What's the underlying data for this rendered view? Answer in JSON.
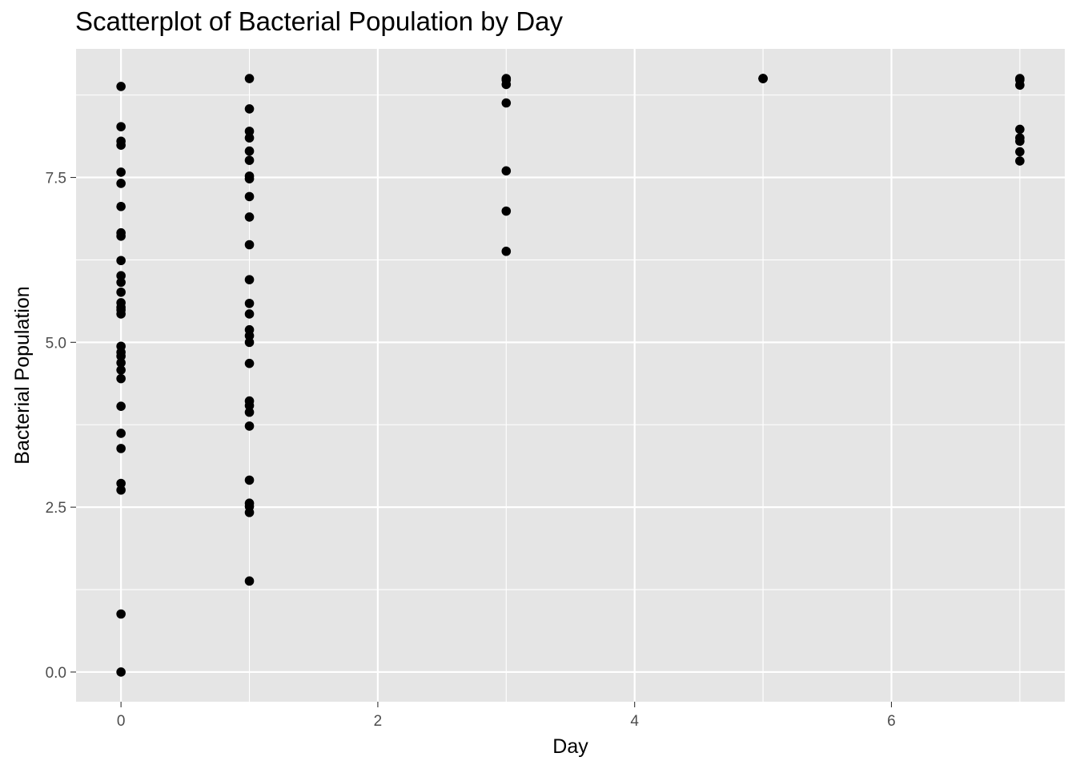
{
  "chart_data": {
    "type": "scatter",
    "title": "Scatterplot of Bacterial Population by Day",
    "xlabel": "Day",
    "ylabel": "Bacterial Population",
    "xlim": [
      -0.35,
      7.35
    ],
    "ylim": [
      -0.45,
      9.45
    ],
    "x_ticks": [
      0,
      2,
      4,
      6
    ],
    "x_tick_labels": [
      "0",
      "2",
      "4",
      "6"
    ],
    "x_minor": [
      1,
      3,
      5,
      7
    ],
    "y_ticks": [
      0,
      2.5,
      5,
      7.5
    ],
    "y_tick_labels": [
      "0.0",
      "2.5",
      "5.0",
      "7.5"
    ],
    "y_minor": [
      1.25,
      3.75,
      6.25,
      8.75
    ],
    "grid": true,
    "legend": "none",
    "colors": {
      "panel": "#e5e5e5",
      "grid": "#ffffff",
      "point": "#000000",
      "tick": "#4d4d4d"
    },
    "points": [
      {
        "x": 0,
        "y": 8.88
      },
      {
        "x": 0,
        "y": 8.27
      },
      {
        "x": 0,
        "y": 8.05
      },
      {
        "x": 0,
        "y": 7.99
      },
      {
        "x": 0,
        "y": 7.58
      },
      {
        "x": 0,
        "y": 7.41
      },
      {
        "x": 0,
        "y": 7.06
      },
      {
        "x": 0,
        "y": 6.66
      },
      {
        "x": 0,
        "y": 6.61
      },
      {
        "x": 0,
        "y": 6.24
      },
      {
        "x": 0,
        "y": 6.01
      },
      {
        "x": 0,
        "y": 5.91
      },
      {
        "x": 0,
        "y": 5.76
      },
      {
        "x": 0,
        "y": 5.6
      },
      {
        "x": 0,
        "y": 5.53
      },
      {
        "x": 0,
        "y": 5.49
      },
      {
        "x": 0,
        "y": 5.43
      },
      {
        "x": 0,
        "y": 4.94
      },
      {
        "x": 0,
        "y": 4.85
      },
      {
        "x": 0,
        "y": 4.79
      },
      {
        "x": 0,
        "y": 4.69
      },
      {
        "x": 0,
        "y": 4.58
      },
      {
        "x": 0,
        "y": 4.45
      },
      {
        "x": 0,
        "y": 4.03
      },
      {
        "x": 0,
        "y": 3.62
      },
      {
        "x": 0,
        "y": 3.39
      },
      {
        "x": 0,
        "y": 2.86
      },
      {
        "x": 0,
        "y": 2.76
      },
      {
        "x": 0,
        "y": 0.88
      },
      {
        "x": 0,
        "y": 0.0
      },
      {
        "x": 1,
        "y": 9.0
      },
      {
        "x": 1,
        "y": 8.54
      },
      {
        "x": 1,
        "y": 8.2
      },
      {
        "x": 1,
        "y": 8.1
      },
      {
        "x": 1,
        "y": 7.9
      },
      {
        "x": 1,
        "y": 7.76
      },
      {
        "x": 1,
        "y": 7.52
      },
      {
        "x": 1,
        "y": 7.48
      },
      {
        "x": 1,
        "y": 7.21
      },
      {
        "x": 1,
        "y": 6.9
      },
      {
        "x": 1,
        "y": 6.48
      },
      {
        "x": 1,
        "y": 5.95
      },
      {
        "x": 1,
        "y": 5.59
      },
      {
        "x": 1,
        "y": 5.43
      },
      {
        "x": 1,
        "y": 5.19
      },
      {
        "x": 1,
        "y": 5.1
      },
      {
        "x": 1,
        "y": 5.0
      },
      {
        "x": 1,
        "y": 4.68
      },
      {
        "x": 1,
        "y": 4.11
      },
      {
        "x": 1,
        "y": 4.04
      },
      {
        "x": 1,
        "y": 3.94
      },
      {
        "x": 1,
        "y": 3.73
      },
      {
        "x": 1,
        "y": 2.91
      },
      {
        "x": 1,
        "y": 2.56
      },
      {
        "x": 1,
        "y": 2.51
      },
      {
        "x": 1,
        "y": 2.42
      },
      {
        "x": 1,
        "y": 1.38
      },
      {
        "x": 3,
        "y": 9.0
      },
      {
        "x": 3,
        "y": 8.98
      },
      {
        "x": 3,
        "y": 8.91
      },
      {
        "x": 3,
        "y": 8.63
      },
      {
        "x": 3,
        "y": 7.6
      },
      {
        "x": 3,
        "y": 6.99
      },
      {
        "x": 3,
        "y": 6.38
      },
      {
        "x": 5,
        "y": 9.0
      },
      {
        "x": 5,
        "y": 9.0
      },
      {
        "x": 5,
        "y": 9.0
      },
      {
        "x": 7,
        "y": 9.0
      },
      {
        "x": 7,
        "y": 8.98
      },
      {
        "x": 7,
        "y": 8.9
      },
      {
        "x": 7,
        "y": 8.23
      },
      {
        "x": 7,
        "y": 8.1
      },
      {
        "x": 7,
        "y": 8.05
      },
      {
        "x": 7,
        "y": 7.89
      },
      {
        "x": 7,
        "y": 7.75
      }
    ]
  }
}
